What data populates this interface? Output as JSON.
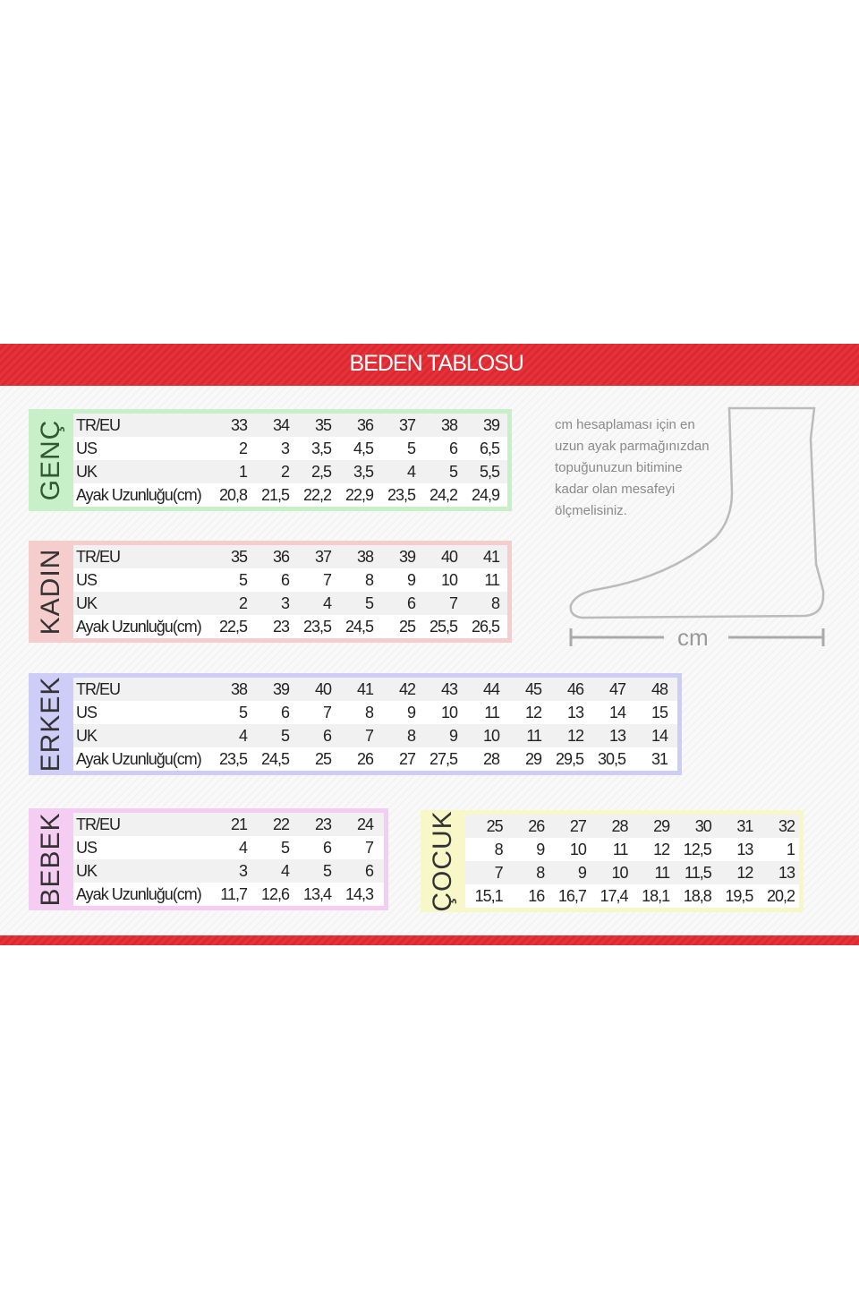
{
  "title": "BEDEN TABLOSU",
  "note_lines": [
    "cm hesaplaması için en",
    "uzun ayak parmağınızdan",
    "topuğunuzun bitimine",
    "kadar olan mesafeyi",
    "ölçmelisiniz."
  ],
  "ruler_label": "cm",
  "icons": {
    "foot": "foot-outline-icon",
    "ruler": "measure-ruler-icon"
  },
  "colors": {
    "banner": "#e8323a",
    "genc": "#c8f0c8",
    "kadin": "#f5cdcd",
    "erkek": "#cdcdf7",
    "bebek": "#f5cdf2",
    "cocuk": "#f7f7c8"
  },
  "tables": [
    {
      "id": "genc",
      "label": "GENÇ",
      "rows": [
        {
          "name": "TR/EU",
          "values": [
            "33",
            "34",
            "35",
            "36",
            "37",
            "38",
            "39"
          ]
        },
        {
          "name": "US",
          "values": [
            "2",
            "3",
            "3,5",
            "4,5",
            "5",
            "6",
            "6,5"
          ]
        },
        {
          "name": "UK",
          "values": [
            "1",
            "2",
            "2,5",
            "3,5",
            "4",
            "5",
            "5,5"
          ]
        },
        {
          "name": "Ayak Uzunluğu(cm)",
          "values": [
            "20,8",
            "21,5",
            "22,2",
            "22,9",
            "23,5",
            "24,2",
            "24,9"
          ]
        }
      ]
    },
    {
      "id": "kadin",
      "label": "KADIN",
      "rows": [
        {
          "name": "TR/EU",
          "values": [
            "35",
            "36",
            "37",
            "38",
            "39",
            "40",
            "41"
          ]
        },
        {
          "name": "US",
          "values": [
            "5",
            "6",
            "7",
            "8",
            "9",
            "10",
            "11"
          ]
        },
        {
          "name": "UK",
          "values": [
            "2",
            "3",
            "4",
            "5",
            "6",
            "7",
            "8"
          ]
        },
        {
          "name": "Ayak Uzunluğu(cm)",
          "values": [
            "22,5",
            "23",
            "23,5",
            "24,5",
            "25",
            "25,5",
            "26,5"
          ]
        }
      ]
    },
    {
      "id": "erkek",
      "label": "ERKEK",
      "rows": [
        {
          "name": "TR/EU",
          "values": [
            "38",
            "39",
            "40",
            "41",
            "42",
            "43",
            "44",
            "45",
            "46",
            "47",
            "48"
          ]
        },
        {
          "name": "US",
          "values": [
            "5",
            "6",
            "7",
            "8",
            "9",
            "10",
            "11",
            "12",
            "13",
            "14",
            "15"
          ]
        },
        {
          "name": "UK",
          "values": [
            "4",
            "5",
            "6",
            "7",
            "8",
            "9",
            "10",
            "11",
            "12",
            "13",
            "14"
          ]
        },
        {
          "name": "Ayak Uzunluğu(cm)",
          "values": [
            "23,5",
            "24,5",
            "25",
            "26",
            "27",
            "27,5",
            "28",
            "29",
            "29,5",
            "30,5",
            "31"
          ]
        }
      ]
    },
    {
      "id": "bebek",
      "label": "BEBEK",
      "rows": [
        {
          "name": "TR/EU",
          "values": [
            "21",
            "22",
            "23",
            "24"
          ]
        },
        {
          "name": "US",
          "values": [
            "4",
            "5",
            "6",
            "7"
          ]
        },
        {
          "name": "UK",
          "values": [
            "3",
            "4",
            "5",
            "6"
          ]
        },
        {
          "name": "Ayak Uzunluğu(cm)",
          "values": [
            "11,7",
            "12,6",
            "13,4",
            "14,3"
          ]
        }
      ]
    },
    {
      "id": "cocuk",
      "label": "ÇOCUK",
      "rows": [
        {
          "name": "",
          "values": [
            "25",
            "26",
            "27",
            "28",
            "29",
            "30",
            "31",
            "32"
          ]
        },
        {
          "name": "",
          "values": [
            "8",
            "9",
            "10",
            "11",
            "12",
            "12,5",
            "13",
            "1"
          ]
        },
        {
          "name": "",
          "values": [
            "7",
            "8",
            "9",
            "10",
            "11",
            "11,5",
            "12",
            "13"
          ]
        },
        {
          "name": "",
          "values": [
            "15,1",
            "16",
            "16,7",
            "17,4",
            "18,1",
            "18,8",
            "19,5",
            "20,2"
          ]
        }
      ]
    }
  ]
}
